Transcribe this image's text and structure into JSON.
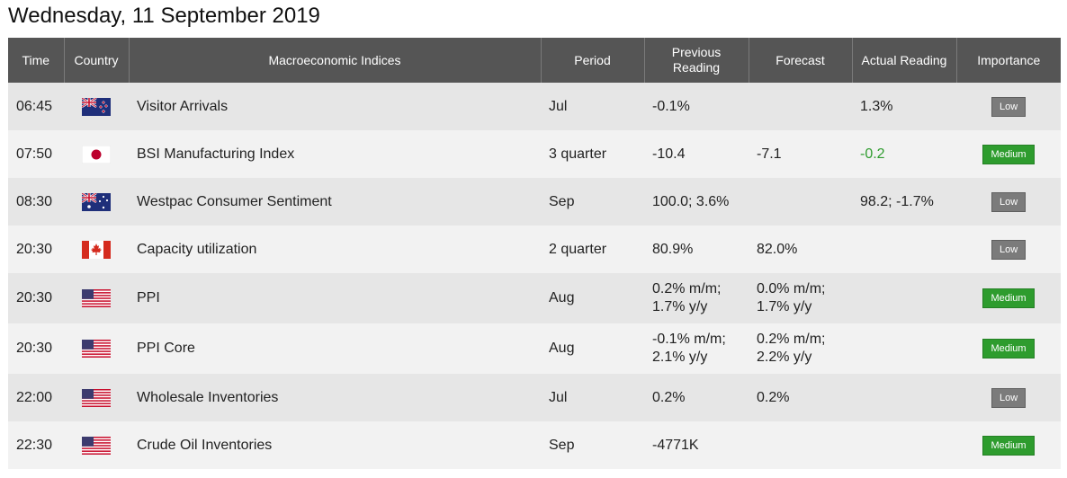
{
  "date_heading": "Wednesday, 11 September 2019",
  "columns": {
    "time": "Time",
    "country": "Country",
    "indices": "Macroeconomic Indices",
    "period": "Period",
    "previous_line1": "Previous",
    "previous_line2": "Reading",
    "forecast": "Forecast",
    "actual": "Actual Reading",
    "importance": "Importance"
  },
  "colors": {
    "header_bg": "#555555",
    "low_badge": "#7b7b7b",
    "medium_badge": "#2e9c2e",
    "actual_positive": "#2e9c2e"
  },
  "rows": [
    {
      "time": "06:45",
      "country_icon": "new-zealand-flag-icon",
      "index": "Visitor Arrivals",
      "period": "Jul",
      "previous_1": "-0.1%",
      "previous_2": "",
      "forecast_1": "",
      "forecast_2": "",
      "actual": "1.3%",
      "importance": "Low"
    },
    {
      "time": "07:50",
      "country_icon": "japan-flag-icon",
      "index": "BSI Manufacturing Index",
      "period": "3 quarter",
      "previous_1": "-10.4",
      "previous_2": "",
      "forecast_1": "-7.1",
      "forecast_2": "",
      "actual": "-0.2",
      "importance": "Medium"
    },
    {
      "time": "08:30",
      "country_icon": "australia-flag-icon",
      "index": "Westpac Consumer Sentiment",
      "period": "Sep",
      "previous_1": "100.0; 3.6%",
      "previous_2": "",
      "forecast_1": "",
      "forecast_2": "",
      "actual": "98.2; -1.7%",
      "importance": "Low"
    },
    {
      "time": "20:30",
      "country_icon": "canada-flag-icon",
      "index": "Capacity utilization",
      "period": "2 quarter",
      "previous_1": "80.9%",
      "previous_2": "",
      "forecast_1": "82.0%",
      "forecast_2": "",
      "actual": "",
      "importance": "Low"
    },
    {
      "time": "20:30",
      "country_icon": "usa-flag-icon",
      "index": "PPI",
      "period": "Aug",
      "previous_1": "0.2% m/m;",
      "previous_2": "1.7% y/y",
      "forecast_1": "0.0% m/m;",
      "forecast_2": "1.7% y/y",
      "actual": "",
      "importance": "Medium"
    },
    {
      "time": "20:30",
      "country_icon": "usa-flag-icon",
      "index": "PPI Core",
      "period": "Aug",
      "previous_1": "-0.1% m/m;",
      "previous_2": "2.1% y/y",
      "forecast_1": "0.2% m/m;",
      "forecast_2": "2.2% y/y",
      "actual": "",
      "importance": "Medium"
    },
    {
      "time": "22:00",
      "country_icon": "usa-flag-icon",
      "index": "Wholesale Inventories",
      "period": "Jul",
      "previous_1": "0.2%",
      "previous_2": "",
      "forecast_1": "0.2%",
      "forecast_2": "",
      "actual": "",
      "importance": "Low"
    },
    {
      "time": "22:30",
      "country_icon": "usa-flag-icon",
      "index": "Crude Oil Inventories",
      "period": "Sep",
      "previous_1": "-4771K",
      "previous_2": "",
      "forecast_1": "",
      "forecast_2": "",
      "actual": "",
      "importance": "Medium"
    }
  ]
}
